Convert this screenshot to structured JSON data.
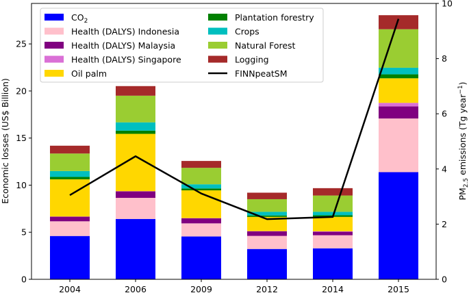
{
  "chart_data": {
    "type": "bar",
    "stacked": true,
    "title": "",
    "xlabel": "",
    "ylabel": "Economic losses (US$ Billion)",
    "y2label_prefix": "PM",
    "y2label_sub": "2.5",
    "y2label_mid": " emissions (Tg year",
    "y2label_sup": "−1",
    "y2label_suffix": ")",
    "categories": [
      "2004",
      "2006",
      "2009",
      "2012",
      "2014",
      "2015"
    ],
    "ylim": [
      0,
      29.3
    ],
    "y2lim": [
      0,
      10
    ],
    "yticks": [
      0,
      5,
      10,
      15,
      20,
      25
    ],
    "y2ticks": [
      0,
      2,
      4,
      6,
      8,
      10
    ],
    "grid": false,
    "legend_position": "top-left",
    "series": [
      {
        "name": "CO2",
        "label_main": "CO",
        "label_sub": "2",
        "color": "#0000ff",
        "values": [
          4.6,
          6.41,
          4.55,
          3.22,
          3.29,
          11.38
        ]
      },
      {
        "name": "Health (DALYS) Indonesia",
        "color": "#ffc0cb",
        "values": [
          1.56,
          2.24,
          1.39,
          1.39,
          1.39,
          5.7
        ]
      },
      {
        "name": "Health (DALYS) Malaysia",
        "color": "#800080",
        "values": [
          0.49,
          0.69,
          0.54,
          0.49,
          0.37,
          1.29
        ]
      },
      {
        "name": "Health (DALYS) Singapore",
        "color": "#da70d6",
        "values": [
          0.02,
          0.02,
          0.02,
          0.02,
          0.05,
          0.37
        ]
      },
      {
        "name": "Oil palm",
        "color": "#ffd700",
        "values": [
          3.95,
          6.09,
          2.95,
          1.51,
          1.53,
          2.61
        ]
      },
      {
        "name": "Plantation forestry",
        "color": "#008000",
        "values": [
          0.25,
          0.34,
          0.2,
          0.15,
          0.17,
          0.42
        ]
      },
      {
        "name": "Crops",
        "color": "#00bfbf",
        "values": [
          0.63,
          0.88,
          0.44,
          0.39,
          0.37,
          0.7
        ]
      },
      {
        "name": "Natural Forest",
        "color": "#9acd32",
        "values": [
          1.86,
          2.83,
          1.75,
          1.34,
          1.73,
          4.09
        ]
      },
      {
        "name": "Logging",
        "color": "#a52a2a",
        "values": [
          0.83,
          1.02,
          0.73,
          0.69,
          0.78,
          1.49
        ]
      }
    ],
    "line_series": {
      "name": "FINNpeatSM",
      "color": "#000000",
      "axis": "right",
      "values": [
        3.05,
        4.46,
        3.11,
        2.18,
        2.26,
        9.44
      ]
    }
  }
}
